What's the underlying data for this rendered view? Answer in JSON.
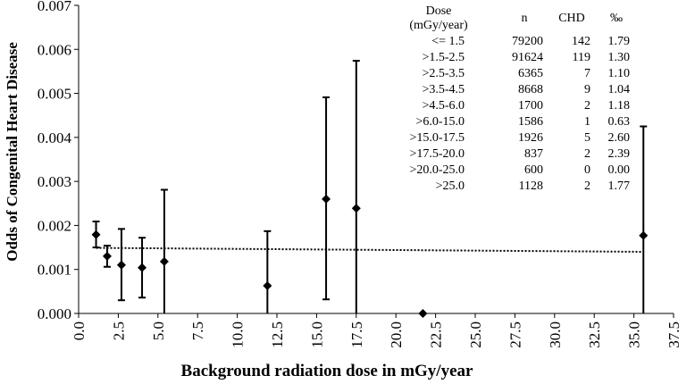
{
  "chart_data": {
    "type": "scatter",
    "xlabel": "Background radiation dose in mGy/year",
    "ylabel": "Odds of Congenital Heart Disease",
    "xlim": [
      0,
      37.5
    ],
    "ylim": [
      0,
      0.007
    ],
    "x_ticks": [
      "0.0",
      "2.5",
      "5.0",
      "7.5",
      "10.0",
      "12.5",
      "15.0",
      "17.5",
      "20.0",
      "22.5",
      "25.0",
      "27.5",
      "30.0",
      "32.5",
      "35.0",
      "37.5"
    ],
    "y_ticks": [
      "0.000",
      "0.001",
      "0.002",
      "0.003",
      "0.004",
      "0.005",
      "0.006",
      "0.007"
    ],
    "grid": false,
    "series": [
      {
        "marker": "diamond",
        "color": "#000000",
        "points": [
          {
            "x": 1.1,
            "y": 0.00179,
            "lo": 0.0015,
            "hi": 0.00209
          },
          {
            "x": 1.8,
            "y": 0.0013,
            "lo": 0.00106,
            "hi": 0.00154
          },
          {
            "x": 2.7,
            "y": 0.0011,
            "lo": 0.0003,
            "hi": 0.00192
          },
          {
            "x": 4.0,
            "y": 0.00104,
            "lo": 0.00036,
            "hi": 0.00172
          },
          {
            "x": 5.4,
            "y": 0.00118,
            "lo": 0.0,
            "hi": 0.00281
          },
          {
            "x": 11.9,
            "y": 0.00063,
            "lo": 0.0,
            "hi": 0.00187
          },
          {
            "x": 15.6,
            "y": 0.0026,
            "lo": 0.00032,
            "hi": 0.00491
          },
          {
            "x": 17.5,
            "y": 0.00239,
            "lo": 0.0,
            "hi": 0.00574
          },
          {
            "x": 21.7,
            "y": 0.0,
            "lo": 0.0,
            "hi": 0.0
          },
          {
            "x": 35.6,
            "y": 0.00177,
            "lo": 0.0,
            "hi": 0.00425
          }
        ]
      }
    ],
    "trendline": {
      "style": "dotted",
      "x": [
        1.1,
        35.6
      ],
      "y": [
        0.00149,
        0.0014
      ]
    },
    "table": {
      "headers": {
        "dose": "Dose",
        "dose_unit": "(mGy/year)",
        "n": "n",
        "chd": "CHD",
        "permil": "‰"
      },
      "rows": [
        {
          "dose": "<= 1.5",
          "n": "79200",
          "chd": "142",
          "permil": "1.79"
        },
        {
          "dose": ">1.5-2.5",
          "n": "91624",
          "chd": "119",
          "permil": "1.30"
        },
        {
          "dose": ">2.5-3.5",
          "n": "6365",
          "chd": "7",
          "permil": "1.10"
        },
        {
          "dose": ">3.5-4.5",
          "n": "8668",
          "chd": "9",
          "permil": "1.04"
        },
        {
          "dose": ">4.5-6.0",
          "n": "1700",
          "chd": "2",
          "permil": "1.18"
        },
        {
          "dose": ">6.0-15.0",
          "n": "1586",
          "chd": "1",
          "permil": "0.63"
        },
        {
          "dose": ">15.0-17.5",
          "n": "1926",
          "chd": "5",
          "permil": "2.60"
        },
        {
          "dose": ">17.5-20.0",
          "n": "837",
          "chd": "2",
          "permil": "2.39"
        },
        {
          "dose": ">20.0-25.0",
          "n": "600",
          "chd": "0",
          "permil": "0.00"
        },
        {
          "dose": ">25.0",
          "n": "1128",
          "chd": "2",
          "permil": "1.77"
        }
      ]
    }
  }
}
